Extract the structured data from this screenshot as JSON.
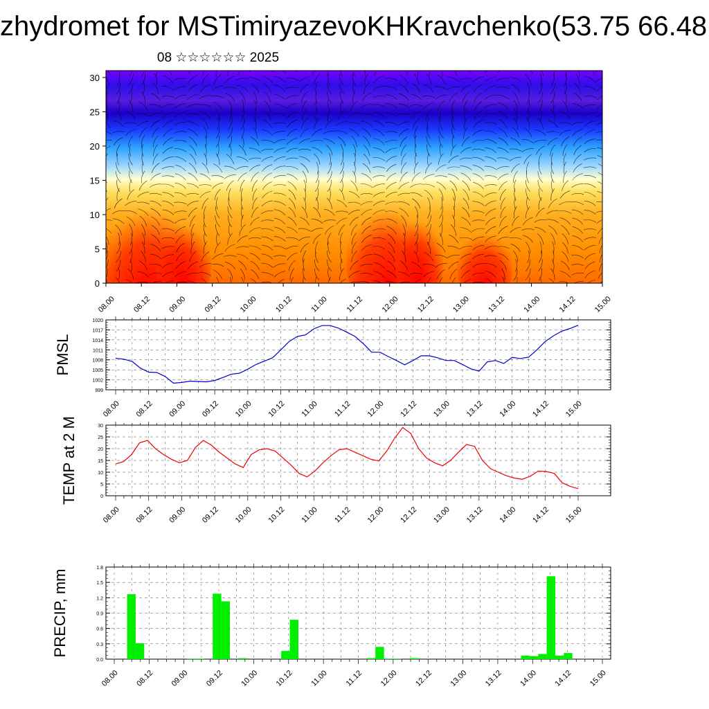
{
  "title": "zhydromet for MSTimiryazevoKHKravchenko(53.75 66.48",
  "subtitle": "08 ☆☆☆☆☆☆ 2025",
  "colors": {
    "pmsl_line": "#0000cc",
    "temp_line": "#ee0000",
    "precip_bar": "#00ee00",
    "grid": "#000000",
    "wind_lines": "#000000"
  },
  "time_labels": [
    "08.00",
    "08.12",
    "09.00",
    "09.12",
    "10.00",
    "10.12",
    "11.00",
    "11.12",
    "12.00",
    "12.12",
    "13.00",
    "13.12",
    "14.00",
    "14.12",
    "15.00"
  ],
  "chart_data": [
    {
      "type": "heatmap",
      "name": "cross-section",
      "x_tick_labels": [
        "08.00",
        "08.12",
        "09.00",
        "09.12",
        "10.00",
        "10.12",
        "11.00",
        "11.12",
        "12.00",
        "12.12",
        "13.00",
        "13.12",
        "14.00",
        "14.12",
        "15.00"
      ],
      "y_ticks": [
        0,
        5,
        10,
        15,
        20,
        25,
        30
      ],
      "ylim": [
        0,
        31
      ],
      "colormap": [
        "#ff0000",
        "#ff8000",
        "#ffcc33",
        "#ffffcc",
        "#99ddff",
        "#33aaff",
        "#0044ff",
        "#1100cc",
        "#7700ff"
      ],
      "overlay": "wind field lines"
    },
    {
      "type": "line",
      "ylabel": "PMSL",
      "ylim": [
        999,
        1020
      ],
      "y_ticks": [
        999,
        1002,
        1005,
        1008,
        1011,
        1014,
        1017,
        1020
      ],
      "x_tick_labels": [
        "08.00",
        "08.12",
        "09.00",
        "09.12",
        "10.00",
        "10.12",
        "11.00",
        "11.12",
        "12.00",
        "12.12",
        "13.00",
        "13.12",
        "14.00",
        "14.12",
        "15.00"
      ],
      "values": [
        1008.5,
        1008.2,
        1007.5,
        1005.5,
        1004.3,
        1004.2,
        1003.0,
        1001.0,
        1001.2,
        1001.6,
        1001.5,
        1001.4,
        1001.8,
        1002.7,
        1003.7,
        1004.0,
        1005.2,
        1006.6,
        1007.6,
        1008.6,
        1011.0,
        1013.5,
        1015.0,
        1015.5,
        1017.3,
        1018.3,
        1018.3,
        1017.5,
        1016.3,
        1015.0,
        1012.8,
        1010.3,
        1010.3,
        1009.0,
        1007.8,
        1006.5,
        1007.8,
        1009.2,
        1009.2,
        1008.6,
        1007.8,
        1007.8,
        1006.6,
        1005.3,
        1004.6,
        1007.4,
        1007.8,
        1006.9,
        1008.7,
        1008.4,
        1008.8,
        1011.0,
        1013.5,
        1015.2,
        1016.6,
        1017.4,
        1018.4
      ]
    },
    {
      "type": "line",
      "ylabel": "TEMP at 2 M",
      "ylim": [
        0,
        30
      ],
      "y_ticks": [
        0,
        5,
        10,
        15,
        20,
        25,
        30
      ],
      "x_tick_labels": [
        "08.00",
        "08.12",
        "09.00",
        "09.12",
        "10.00",
        "10.12",
        "11.00",
        "11.12",
        "12.00",
        "12.12",
        "13.00",
        "13.12",
        "14.00",
        "14.12",
        "15.00"
      ],
      "values": [
        13.5,
        14.5,
        17.5,
        22.5,
        23.5,
        20.0,
        17.5,
        15.5,
        14.0,
        15.0,
        20.5,
        23.5,
        21.5,
        18.5,
        16.0,
        13.5,
        12.0,
        17.5,
        19.5,
        20.0,
        19.0,
        16.0,
        13.0,
        9.5,
        8.0,
        10.5,
        14.0,
        17.0,
        19.5,
        20.0,
        18.5,
        17.0,
        15.5,
        14.8,
        19.0,
        24.5,
        29.0,
        26.5,
        20.0,
        16.0,
        14.0,
        12.7,
        15.0,
        18.5,
        21.8,
        21.0,
        15.0,
        11.5,
        10.0,
        8.5,
        7.5,
        7.0,
        8.3,
        10.5,
        10.3,
        9.5,
        5.5,
        4.0,
        3.0
      ]
    },
    {
      "type": "bar",
      "ylabel": "PRECIP, mm",
      "ylim": [
        0,
        1.8
      ],
      "y_ticks": [
        "0.0",
        "0.3",
        "0.6",
        "0.9",
        "1.2",
        "1.5",
        "1.8"
      ],
      "x_tick_labels": [
        "08.00",
        "08.12",
        "09.00",
        "09.12",
        "10.00",
        "10.12",
        "11.00",
        "11.12",
        "12.00",
        "12.12",
        "13.00",
        "13.12",
        "14.00",
        "14.12",
        "15.00"
      ],
      "values": [
        0,
        0,
        1.27,
        0.31,
        0,
        0,
        0,
        0,
        0,
        0.01,
        0.01,
        0,
        1.28,
        1.13,
        0,
        0.02,
        0,
        0,
        0,
        0,
        0.16,
        0.77,
        0,
        0,
        0,
        0,
        0,
        0,
        0,
        0,
        0.02,
        0.24,
        0.01,
        0.01,
        0,
        0.02,
        0,
        0,
        0,
        0,
        0,
        0,
        0,
        0,
        0,
        0,
        0,
        0,
        0.07,
        0.06,
        0.1,
        1.62,
        0.07,
        0.12,
        0,
        0,
        0,
        0
      ]
    }
  ]
}
